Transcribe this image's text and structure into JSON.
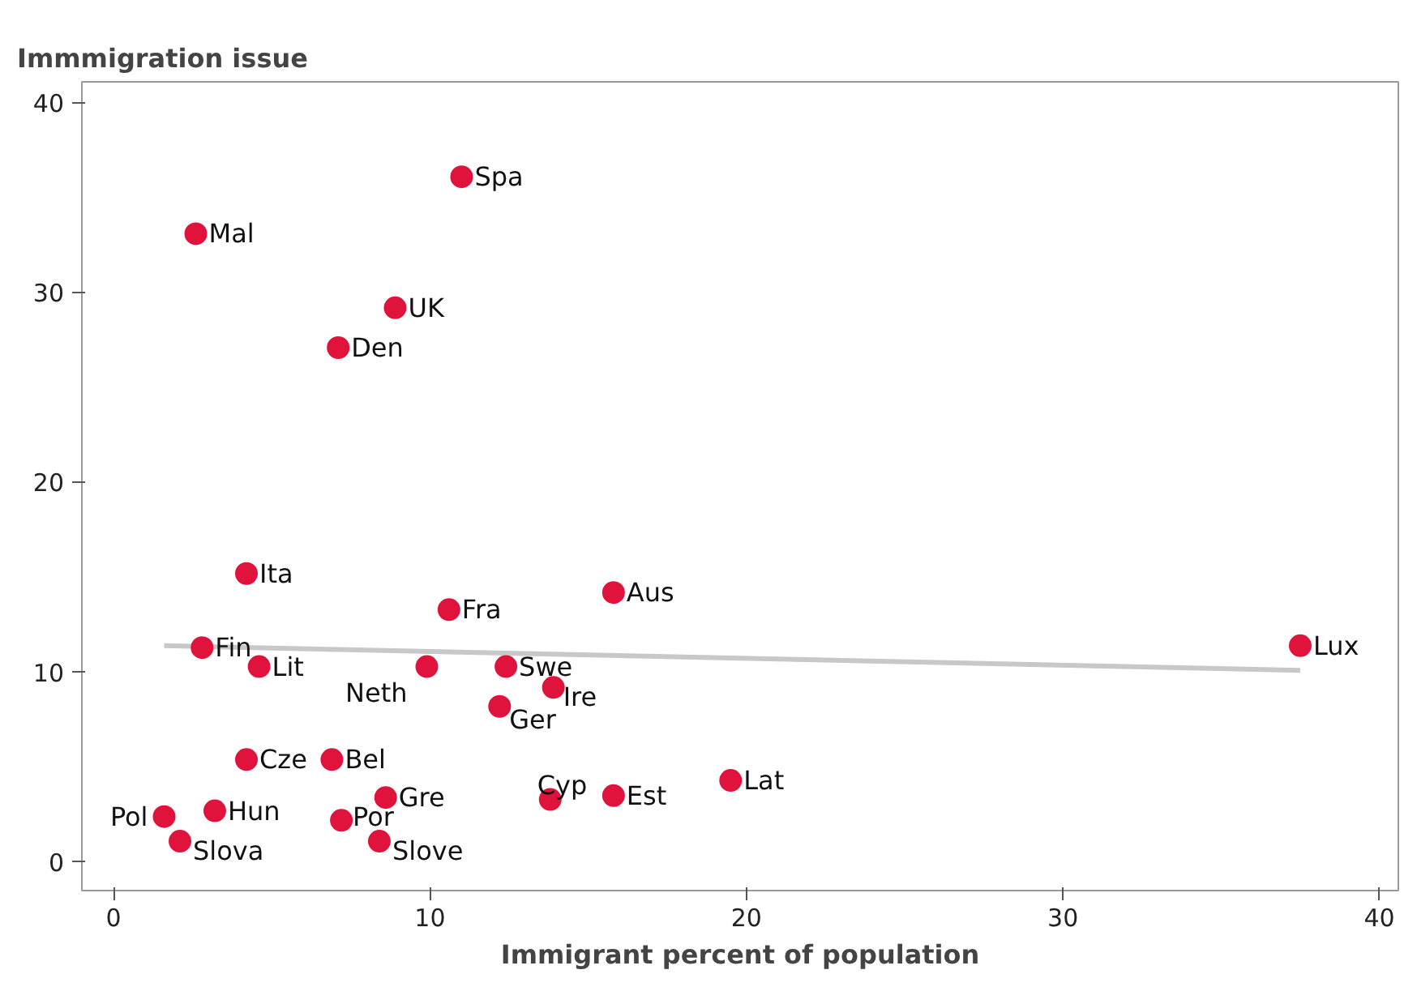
{
  "chart_data": {
    "type": "scatter",
    "ylabel": "Immmigration issue",
    "xlabel": "Immigrant percent of population",
    "xlim": [
      -1.0,
      40.6
    ],
    "ylim": [
      -1.5,
      41.1
    ],
    "xticks": [
      0,
      10,
      20,
      30,
      40
    ],
    "yticks": [
      0,
      10,
      20,
      30,
      40
    ],
    "grid": false,
    "series": [
      {
        "type": "line",
        "color": "#c8c8c8",
        "x": [
          1.6,
          37.5
        ],
        "values": [
          11.4,
          10.1
        ]
      },
      {
        "marker": "circle",
        "color": "#e0133c",
        "x": [
          11.0,
          2.6,
          8.9,
          7.1,
          4.2,
          15.8,
          10.6,
          2.8,
          4.6,
          9.9,
          12.4,
          13.9,
          12.2,
          37.5,
          4.2,
          6.9,
          8.6,
          13.8,
          15.8,
          19.5,
          3.2,
          1.6,
          7.2,
          2.1,
          8.4
        ],
        "values": [
          36.1,
          33.1,
          29.2,
          27.1,
          15.2,
          14.2,
          13.3,
          11.3,
          10.3,
          10.3,
          10.3,
          9.2,
          8.2,
          11.4,
          5.4,
          5.4,
          3.4,
          3.3,
          3.5,
          4.3,
          2.7,
          2.4,
          2.2,
          1.1,
          1.1
        ]
      }
    ],
    "annotations": [
      {
        "text": "Spa",
        "x": 11.0,
        "y": 36.1
      },
      {
        "text": "Mal",
        "x": 2.6,
        "y": 33.1
      },
      {
        "text": "UK",
        "x": 8.9,
        "y": 29.2
      },
      {
        "text": "Den",
        "x": 7.1,
        "y": 27.1
      },
      {
        "text": "Ita",
        "x": 4.2,
        "y": 15.2
      },
      {
        "text": "Aus",
        "x": 15.8,
        "y": 14.2
      },
      {
        "text": "Fra",
        "x": 10.6,
        "y": 13.3
      },
      {
        "text": "Fin",
        "x": 2.8,
        "y": 11.3
      },
      {
        "text": "Lit",
        "x": 4.6,
        "y": 10.3
      },
      {
        "text": "Neth",
        "x": 9.9,
        "y": 10.3
      },
      {
        "text": "Swe",
        "x": 12.4,
        "y": 10.3
      },
      {
        "text": "Ire",
        "x": 13.9,
        "y": 9.2
      },
      {
        "text": "Ger",
        "x": 12.2,
        "y": 8.2
      },
      {
        "text": "Lux",
        "x": 37.5,
        "y": 11.4
      },
      {
        "text": "Cze",
        "x": 4.2,
        "y": 5.4
      },
      {
        "text": "Bel",
        "x": 6.9,
        "y": 5.4
      },
      {
        "text": "Gre",
        "x": 8.6,
        "y": 3.4
      },
      {
        "text": "Cyp",
        "x": 13.8,
        "y": 3.3
      },
      {
        "text": "Est",
        "x": 15.8,
        "y": 3.5
      },
      {
        "text": "Lat",
        "x": 19.5,
        "y": 4.3
      },
      {
        "text": "Hun",
        "x": 3.2,
        "y": 2.7
      },
      {
        "text": "Pol",
        "x": 1.6,
        "y": 2.4
      },
      {
        "text": "Por",
        "x": 7.2,
        "y": 2.2
      },
      {
        "text": "Slova",
        "x": 2.1,
        "y": 1.1
      },
      {
        "text": "Slove",
        "x": 8.4,
        "y": 1.1
      }
    ]
  }
}
